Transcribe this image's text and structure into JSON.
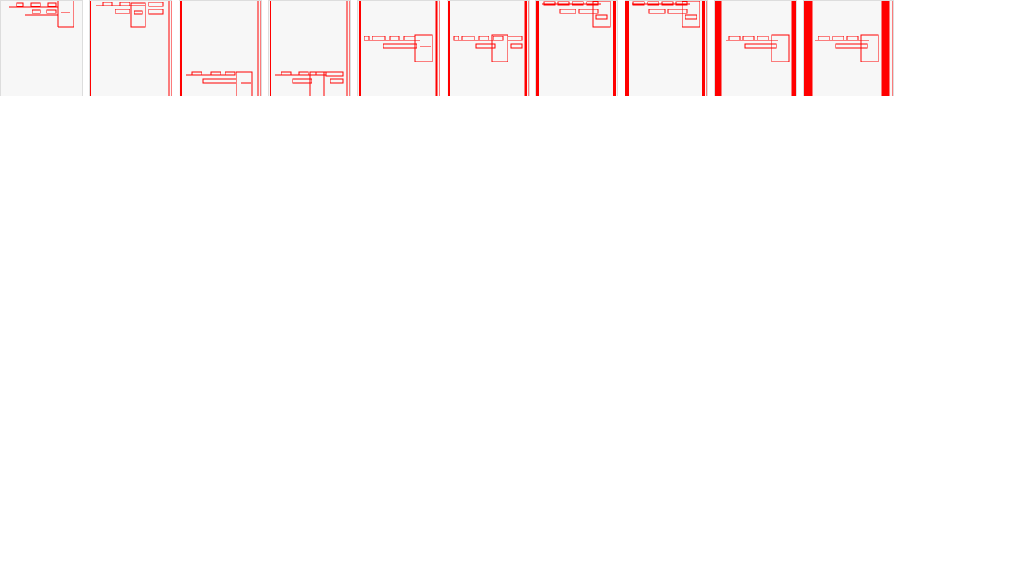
{
  "strip": {
    "frame_count": 10,
    "background_color": "#ffffff",
    "frame_color": "#f7f7f7",
    "frame_border_color": "#dddddd",
    "mark_color": "#ff0000"
  },
  "frames": [
    {
      "id": "frame-1"
    },
    {
      "id": "frame-2"
    },
    {
      "id": "frame-3"
    },
    {
      "id": "frame-4"
    },
    {
      "id": "frame-5"
    },
    {
      "id": "frame-6"
    },
    {
      "id": "frame-7"
    },
    {
      "id": "frame-8"
    },
    {
      "id": "frame-9"
    },
    {
      "id": "frame-10"
    }
  ]
}
